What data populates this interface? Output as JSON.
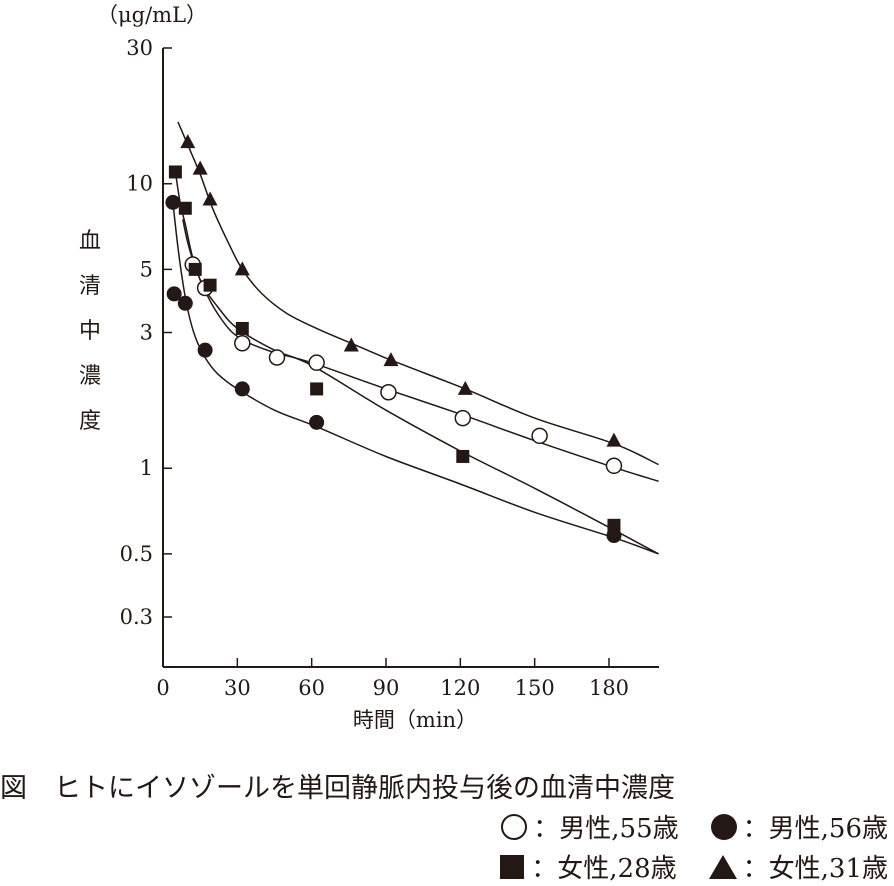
{
  "chart_data": {
    "type": "scatter",
    "y_scale": "log",
    "unit_label": "（μg/mL）",
    "ylabel_chars": [
      "血",
      "清",
      "中",
      "濃",
      "度"
    ],
    "xlabel": "時間（min）",
    "xlim": [
      0,
      200
    ],
    "ylim": [
      0.2,
      30
    ],
    "x_ticks": [
      0,
      30,
      60,
      90,
      120,
      150,
      180
    ],
    "y_ticks": [
      {
        "value": 30,
        "label": "30"
      },
      {
        "value": 10,
        "label": "10"
      },
      {
        "value": 5,
        "label": "5"
      },
      {
        "value": 3,
        "label": "3"
      },
      {
        "value": 1,
        "label": "1"
      },
      {
        "value": 0.5,
        "label": "0.5"
      },
      {
        "value": 0.3,
        "label": "0.3"
      }
    ],
    "grid": false,
    "series": [
      {
        "name": "男性,55歳",
        "marker": "circle-open",
        "points": [
          [
            12,
            5.2
          ],
          [
            17,
            4.3
          ],
          [
            32,
            2.75
          ],
          [
            46,
            2.45
          ],
          [
            62,
            2.35
          ],
          [
            91,
            1.85
          ],
          [
            121,
            1.5
          ],
          [
            152,
            1.3
          ],
          [
            182,
            1.02
          ]
        ],
        "curve": [
          [
            8,
            7.5
          ],
          [
            10,
            6.2
          ],
          [
            13,
            5.1
          ],
          [
            17,
            4.2
          ],
          [
            22,
            3.5
          ],
          [
            28,
            3.0
          ],
          [
            35,
            2.75
          ],
          [
            45,
            2.55
          ],
          [
            60,
            2.35
          ],
          [
            90,
            1.9
          ],
          [
            120,
            1.55
          ],
          [
            150,
            1.25
          ],
          [
            180,
            1.02
          ],
          [
            200,
            0.9
          ]
        ]
      },
      {
        "name": "男性,56歳",
        "marker": "circle-filled",
        "points": [
          [
            4,
            8.6
          ],
          [
            4.5,
            4.1
          ],
          [
            9,
            3.8
          ],
          [
            17,
            2.6
          ],
          [
            32,
            1.9
          ],
          [
            62,
            1.45
          ],
          [
            182,
            0.58
          ]
        ],
        "curve": [
          [
            4,
            8.6
          ],
          [
            6,
            6.0
          ],
          [
            8,
            4.5
          ],
          [
            10,
            3.6
          ],
          [
            13,
            2.9
          ],
          [
            17,
            2.45
          ],
          [
            22,
            2.15
          ],
          [
            30,
            1.9
          ],
          [
            45,
            1.6
          ],
          [
            62,
            1.4
          ],
          [
            90,
            1.1
          ],
          [
            120,
            0.88
          ],
          [
            150,
            0.7
          ],
          [
            182,
            0.57
          ],
          [
            200,
            0.5
          ]
        ]
      },
      {
        "name": "女性,28歳",
        "marker": "square-filled",
        "points": [
          [
            5,
            11.0
          ],
          [
            9,
            8.2
          ],
          [
            13,
            5.0
          ],
          [
            19,
            4.4
          ],
          [
            32,
            3.1
          ],
          [
            62,
            1.9
          ],
          [
            121,
            1.1
          ],
          [
            182,
            0.63
          ]
        ],
        "curve": [
          [
            5,
            11.0
          ],
          [
            7,
            8.5
          ],
          [
            9,
            7.2
          ],
          [
            12,
            5.5
          ],
          [
            16,
            4.4
          ],
          [
            22,
            3.7
          ],
          [
            30,
            3.1
          ],
          [
            45,
            2.6
          ],
          [
            60,
            2.3
          ],
          [
            90,
            1.6
          ],
          [
            120,
            1.15
          ],
          [
            150,
            0.85
          ],
          [
            180,
            0.62
          ],
          [
            200,
            0.5
          ]
        ]
      },
      {
        "name": "女性,31歳",
        "marker": "triangle-filled",
        "points": [
          [
            10,
            14.0
          ],
          [
            15,
            11.3
          ],
          [
            19,
            8.8
          ],
          [
            32,
            5.0
          ],
          [
            76,
            2.7
          ],
          [
            92,
            2.4
          ],
          [
            122,
            1.9
          ],
          [
            182,
            1.25
          ]
        ],
        "curve": [
          [
            6,
            16.5
          ],
          [
            10,
            13.7
          ],
          [
            15,
            10.8
          ],
          [
            20,
            8.2
          ],
          [
            26,
            6.3
          ],
          [
            32,
            5.0
          ],
          [
            40,
            4.1
          ],
          [
            50,
            3.5
          ],
          [
            62,
            3.1
          ],
          [
            76,
            2.75
          ],
          [
            92,
            2.4
          ],
          [
            122,
            1.9
          ],
          [
            150,
            1.5
          ],
          [
            182,
            1.22
          ],
          [
            200,
            1.03
          ]
        ]
      }
    ]
  },
  "caption": "図　ヒトにイソゾールを単回静脈内投与後の血清中濃度",
  "legend": {
    "items": [
      {
        "marker": "circle-open",
        "sep": "：",
        "label": "男性,55歳"
      },
      {
        "marker": "circle-filled",
        "sep": "：",
        "label": "男性,56歳"
      },
      {
        "marker": "square-filled",
        "sep": "：",
        "label": "女性,28歳"
      },
      {
        "marker": "triangle-filled",
        "sep": "：",
        "label": "女性,31歳"
      }
    ]
  }
}
